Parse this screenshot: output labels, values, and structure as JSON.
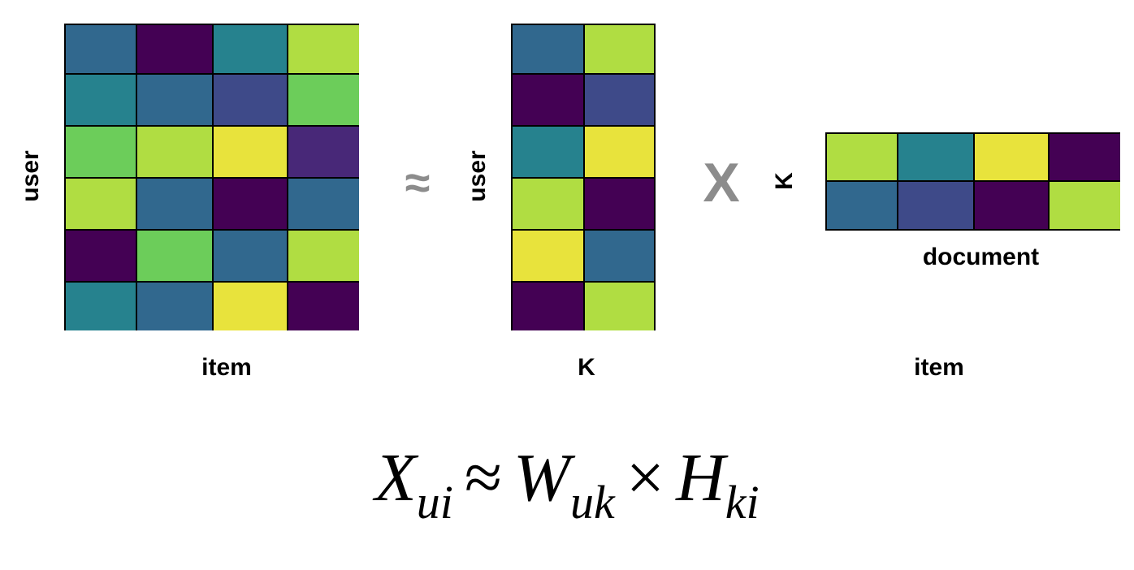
{
  "labels": {
    "x_user": "user",
    "x_item": "item",
    "w_user": "user",
    "w_k": "K",
    "h_k": "K",
    "h_document": "document",
    "h_item": "item"
  },
  "operators": {
    "approx": "≈",
    "times": "X"
  },
  "equation": {
    "X": "X",
    "X_sub": "ui",
    "approx": "≈",
    "W": "W",
    "W_sub": "uk",
    "times": "×",
    "H": "H",
    "H_sub": "ki"
  },
  "palette": {
    "dp": "#440154",
    "pu": "#482878",
    "in": "#3e4a89",
    "bl": "#31688e",
    "te": "#26828e",
    "gr": "#6ccd5a",
    "li": "#b0dd42",
    "ye": "#e8e33c"
  },
  "matrices": {
    "X": [
      [
        "bl",
        "dp",
        "te",
        "li"
      ],
      [
        "te",
        "bl",
        "in",
        "gr"
      ],
      [
        "gr",
        "li",
        "ye",
        "pu"
      ],
      [
        "li",
        "bl",
        "dp",
        "bl"
      ],
      [
        "dp",
        "gr",
        "bl",
        "li"
      ],
      [
        "te",
        "bl",
        "ye",
        "dp"
      ]
    ],
    "W": [
      [
        "bl",
        "li"
      ],
      [
        "dp",
        "in"
      ],
      [
        "te",
        "ye"
      ],
      [
        "li",
        "dp"
      ],
      [
        "ye",
        "bl"
      ],
      [
        "dp",
        "li"
      ]
    ],
    "H": [
      [
        "li",
        "te",
        "ye",
        "dp"
      ],
      [
        "bl",
        "in",
        "dp",
        "li"
      ]
    ]
  }
}
